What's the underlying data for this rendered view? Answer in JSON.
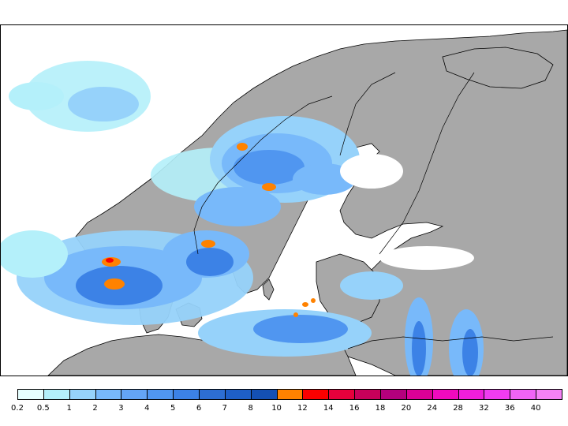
{
  "colors": {
    "land": "#a8a8a8",
    "sea": "#ffffff",
    "coast": "#000000"
  },
  "legend": {
    "labels": [
      "0.2",
      "0.5",
      "1",
      "2",
      "3",
      "4",
      "5",
      "6",
      "7",
      "8",
      "10",
      "12",
      "14",
      "16",
      "18",
      "20",
      "24",
      "28",
      "32",
      "36",
      "40"
    ],
    "colors": [
      "#e6ffff",
      "#b4f0fa",
      "#96d2fa",
      "#78b9fa",
      "#64a5f5",
      "#5096f0",
      "#3c82e6",
      "#2d6ed2",
      "#1e5fc8",
      "#1450b4",
      "#ff8200",
      "#fa0000",
      "#e6003c",
      "#c8005a",
      "#b4007d",
      "#dc0096",
      "#f00abe",
      "#f01edc",
      "#f03cf0",
      "#f064f5",
      "#f582f5"
    ]
  }
}
